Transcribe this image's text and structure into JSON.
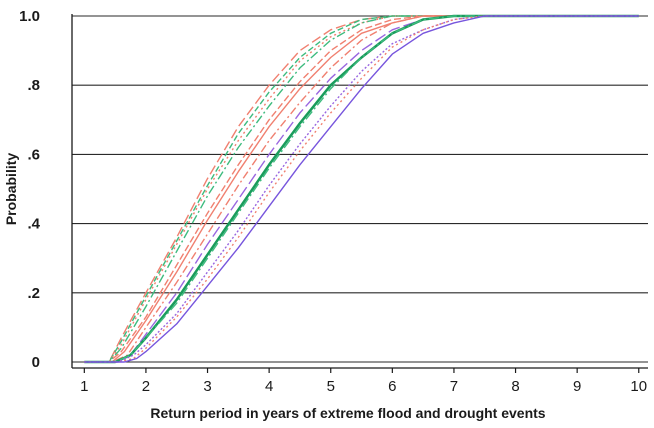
{
  "chart_data": {
    "type": "line",
    "title": "",
    "xlabel": "Return period in years of extreme flood and drought events",
    "ylabel": "Probability",
    "xlim": [
      0.8,
      10.15
    ],
    "ylim": [
      0,
      1.0
    ],
    "x_ticks": [
      1,
      2,
      3,
      4,
      5,
      6,
      7,
      8,
      9,
      10
    ],
    "x_tick_labels": [
      "1",
      "2",
      "3",
      "4",
      "5",
      "6",
      "7",
      "8",
      "9",
      "10"
    ],
    "y_ticks": [
      0,
      0.2,
      0.4,
      0.6,
      0.8,
      1.0
    ],
    "y_tick_labels": [
      "0",
      ".2",
      ".4",
      ".6",
      ".8",
      "1.0"
    ],
    "grid": "horizontal",
    "legend": "none",
    "series": [
      {
        "color": "#f08070",
        "dash": "10 4",
        "points": [
          [
            1,
            0
          ],
          [
            1.4,
            0
          ],
          [
            1.6,
            0.07
          ],
          [
            2,
            0.2
          ],
          [
            2.5,
            0.36
          ],
          [
            3,
            0.53
          ],
          [
            3.5,
            0.68
          ],
          [
            4,
            0.8
          ],
          [
            4.5,
            0.9
          ],
          [
            5,
            0.96
          ],
          [
            5.5,
            0.99
          ],
          [
            6,
            1
          ],
          [
            10,
            1
          ]
        ]
      },
      {
        "color": "#3dbb7e",
        "dash": "6 3",
        "points": [
          [
            1,
            0
          ],
          [
            1.4,
            0
          ],
          [
            1.6,
            0.06
          ],
          [
            2,
            0.19
          ],
          [
            2.5,
            0.35
          ],
          [
            3,
            0.51
          ],
          [
            3.5,
            0.66
          ],
          [
            4,
            0.78
          ],
          [
            4.5,
            0.88
          ],
          [
            5,
            0.95
          ],
          [
            5.5,
            0.99
          ],
          [
            6,
            1
          ],
          [
            10,
            1
          ]
        ]
      },
      {
        "color": "#f08070",
        "dash": "2 3",
        "points": [
          [
            1,
            0
          ],
          [
            1.4,
            0
          ],
          [
            1.6,
            0.05
          ],
          [
            2,
            0.18
          ],
          [
            2.5,
            0.34
          ],
          [
            3,
            0.5
          ],
          [
            3.5,
            0.64
          ],
          [
            4,
            0.76
          ],
          [
            4.5,
            0.87
          ],
          [
            5,
            0.94
          ],
          [
            5.5,
            0.98
          ],
          [
            6,
            1
          ],
          [
            10,
            1
          ]
        ]
      },
      {
        "color": "#3dbb7e",
        "dash": "9 3 2 3",
        "points": [
          [
            1,
            0
          ],
          [
            1.4,
            0
          ],
          [
            1.6,
            0.04
          ],
          [
            2,
            0.16
          ],
          [
            2.5,
            0.32
          ],
          [
            3,
            0.48
          ],
          [
            3.5,
            0.62
          ],
          [
            4,
            0.74
          ],
          [
            4.5,
            0.85
          ],
          [
            5,
            0.93
          ],
          [
            5.5,
            0.98
          ],
          [
            6,
            1
          ],
          [
            10,
            1
          ]
        ]
      },
      {
        "color": "#f08070",
        "dash": "7 3",
        "points": [
          [
            1,
            0
          ],
          [
            1.4,
            0
          ],
          [
            1.6,
            0.03
          ],
          [
            2,
            0.13
          ],
          [
            2.5,
            0.28
          ],
          [
            3,
            0.43
          ],
          [
            3.5,
            0.57
          ],
          [
            4,
            0.7
          ],
          [
            4.5,
            0.81
          ],
          [
            5,
            0.9
          ],
          [
            5.5,
            0.96
          ],
          [
            6,
            0.99
          ],
          [
            6.5,
            1
          ],
          [
            10,
            1
          ]
        ]
      },
      {
        "color": "#f08070",
        "dash": "",
        "points": [
          [
            1,
            0
          ],
          [
            1.45,
            0
          ],
          [
            1.65,
            0.03
          ],
          [
            2,
            0.12
          ],
          [
            2.5,
            0.26
          ],
          [
            3,
            0.41
          ],
          [
            3.5,
            0.55
          ],
          [
            4,
            0.68
          ],
          [
            4.5,
            0.79
          ],
          [
            5,
            0.88
          ],
          [
            5.5,
            0.95
          ],
          [
            6,
            0.98
          ],
          [
            6.5,
            1
          ],
          [
            10,
            1
          ]
        ]
      },
      {
        "color": "#f08070",
        "dash": "8 3 2 3",
        "points": [
          [
            1,
            0
          ],
          [
            1.45,
            0
          ],
          [
            1.7,
            0.02
          ],
          [
            2,
            0.1
          ],
          [
            2.5,
            0.23
          ],
          [
            3,
            0.37
          ],
          [
            3.5,
            0.51
          ],
          [
            4,
            0.64
          ],
          [
            4.5,
            0.75
          ],
          [
            5,
            0.85
          ],
          [
            5.5,
            0.93
          ],
          [
            6,
            0.98
          ],
          [
            6.5,
            1
          ],
          [
            10,
            1
          ]
        ]
      },
      {
        "color": "#9966e0",
        "dash": "12 4",
        "points": [
          [
            1,
            0
          ],
          [
            1.5,
            0
          ],
          [
            1.75,
            0.02
          ],
          [
            2,
            0.08
          ],
          [
            2.5,
            0.2
          ],
          [
            3,
            0.34
          ],
          [
            3.5,
            0.47
          ],
          [
            4,
            0.6
          ],
          [
            4.5,
            0.72
          ],
          [
            5,
            0.82
          ],
          [
            5.5,
            0.9
          ],
          [
            6,
            0.96
          ],
          [
            6.5,
            0.99
          ],
          [
            7,
            1
          ],
          [
            10,
            1
          ]
        ]
      },
      {
        "color": "#1a9c5c",
        "dash": "",
        "width": 2.5,
        "points": [
          [
            1,
            0
          ],
          [
            1.5,
            0
          ],
          [
            1.75,
            0.02
          ],
          [
            2,
            0.07
          ],
          [
            2.5,
            0.18
          ],
          [
            3,
            0.31
          ],
          [
            3.5,
            0.44
          ],
          [
            4,
            0.57
          ],
          [
            4.5,
            0.69
          ],
          [
            5,
            0.8
          ],
          [
            5.5,
            0.88
          ],
          [
            6,
            0.95
          ],
          [
            6.5,
            0.99
          ],
          [
            7,
            1
          ],
          [
            10,
            1
          ]
        ]
      },
      {
        "color": "#3dbb7e",
        "dash": "10 3 2 3",
        "points": [
          [
            1,
            0
          ],
          [
            1.5,
            0
          ],
          [
            1.75,
            0.02
          ],
          [
            2,
            0.07
          ],
          [
            2.5,
            0.17
          ],
          [
            3,
            0.3
          ],
          [
            3.5,
            0.43
          ],
          [
            4,
            0.56
          ],
          [
            4.5,
            0.68
          ],
          [
            5,
            0.79
          ],
          [
            5.5,
            0.88
          ],
          [
            6,
            0.95
          ],
          [
            6.5,
            0.99
          ],
          [
            7,
            1
          ],
          [
            10,
            1
          ]
        ]
      },
      {
        "color": "#9966e0",
        "dash": "2 2",
        "points": [
          [
            1,
            0
          ],
          [
            1.55,
            0
          ],
          [
            1.8,
            0.02
          ],
          [
            2,
            0.05
          ],
          [
            2.5,
            0.14
          ],
          [
            3,
            0.26
          ],
          [
            3.5,
            0.38
          ],
          [
            4,
            0.51
          ],
          [
            4.5,
            0.63
          ],
          [
            5,
            0.74
          ],
          [
            5.5,
            0.84
          ],
          [
            6,
            0.92
          ],
          [
            6.5,
            0.96
          ],
          [
            7,
            0.99
          ],
          [
            7.5,
            1
          ],
          [
            10,
            1
          ]
        ]
      },
      {
        "color": "#f08070",
        "dash": "2 3",
        "points": [
          [
            1,
            0
          ],
          [
            1.55,
            0
          ],
          [
            1.8,
            0.01
          ],
          [
            2,
            0.04
          ],
          [
            2.5,
            0.13
          ],
          [
            3,
            0.24
          ],
          [
            3.5,
            0.36
          ],
          [
            4,
            0.49
          ],
          [
            4.5,
            0.61
          ],
          [
            5,
            0.72
          ],
          [
            5.5,
            0.82
          ],
          [
            6,
            0.91
          ],
          [
            6.5,
            0.96
          ],
          [
            7,
            0.99
          ],
          [
            7.5,
            1
          ],
          [
            10,
            1
          ]
        ]
      },
      {
        "color": "#7755dd",
        "dash": "",
        "points": [
          [
            1,
            0
          ],
          [
            1.65,
            0
          ],
          [
            1.85,
            0.01
          ],
          [
            2,
            0.03
          ],
          [
            2.5,
            0.11
          ],
          [
            3,
            0.22
          ],
          [
            3.5,
            0.33
          ],
          [
            4,
            0.45
          ],
          [
            4.5,
            0.57
          ],
          [
            5,
            0.68
          ],
          [
            5.5,
            0.79
          ],
          [
            6,
            0.89
          ],
          [
            6.5,
            0.95
          ],
          [
            7,
            0.98
          ],
          [
            7.5,
            1
          ],
          [
            10,
            1
          ]
        ]
      }
    ]
  }
}
